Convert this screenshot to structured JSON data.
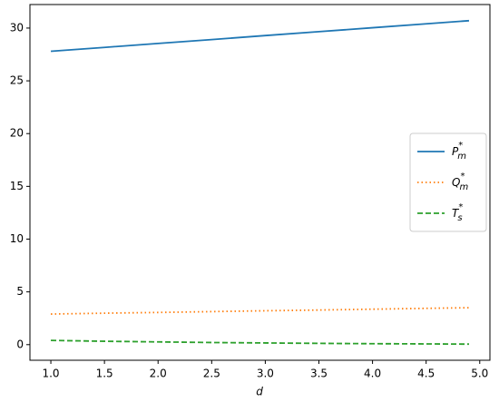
{
  "chart_data": {
    "type": "line",
    "x_label": "d",
    "x": [
      1.0,
      1.5,
      2.0,
      2.5,
      3.0,
      3.5,
      4.0,
      4.5,
      4.9
    ],
    "series": [
      {
        "name": "$P_m^*$",
        "color": "#1f77b4",
        "linestyle": "solid",
        "values": [
          27.8,
          28.17,
          28.54,
          28.91,
          29.29,
          29.66,
          30.03,
          30.4,
          30.7
        ]
      },
      {
        "name": "$Q_m^*$",
        "color": "#ff7f0e",
        "linestyle": "dotted",
        "values": [
          2.9,
          2.98,
          3.05,
          3.13,
          3.21,
          3.28,
          3.36,
          3.44,
          3.5
        ]
      },
      {
        "name": "$T_s^*$",
        "color": "#2ca02c",
        "linestyle": "dashed",
        "values": [
          0.4,
          0.32,
          0.26,
          0.2,
          0.16,
          0.12,
          0.09,
          0.07,
          0.05
        ]
      }
    ],
    "xlim": [
      0.805,
      5.095
    ],
    "ylim": [
      -1.48,
      32.23
    ],
    "xticks": [
      {
        "value": 1,
        "label": "1.0"
      },
      1.5,
      {
        "value": 2,
        "label": "2.0"
      },
      2.5,
      {
        "value": 3,
        "label": "3.0"
      },
      3.5,
      {
        "value": 4,
        "label": "4.0"
      },
      4.5,
      {
        "value": 5,
        "label": "5.0"
      }
    ],
    "yticks": [
      0,
      5,
      10,
      15,
      20,
      25,
      30
    ],
    "grid": false,
    "legend": "center right"
  }
}
